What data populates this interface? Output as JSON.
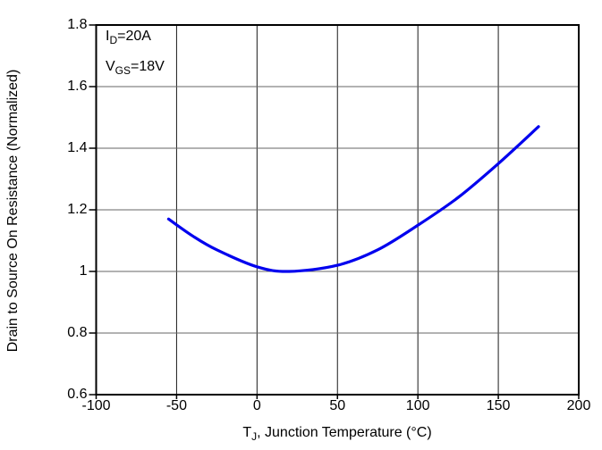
{
  "chart_data": {
    "type": "line",
    "title": "",
    "xlabel": {
      "pre": "T",
      "sub": "J",
      "post": ", Junction Temperature (°C)"
    },
    "ylabel": "Drain to Source On Resistance (Normalized)",
    "xlim": [
      -100,
      200
    ],
    "ylim": [
      0.6,
      1.8
    ],
    "x_ticks": [
      -100,
      -50,
      0,
      50,
      100,
      150,
      200
    ],
    "y_ticks": [
      0.6,
      0.8,
      1,
      1.2,
      1.4,
      1.6,
      1.8
    ],
    "grid": true,
    "legend": "none",
    "series": [
      {
        "name": "rds-on-normalized-vs-tj",
        "color": "#0000ee",
        "x": [
          -55,
          -40,
          -25,
          0,
          20,
          50,
          75,
          100,
          125,
          150,
          175
        ],
        "y": [
          1.17,
          1.115,
          1.07,
          1.015,
          1.0,
          1.02,
          1.07,
          1.15,
          1.24,
          1.35,
          1.47
        ]
      }
    ],
    "annotations": [
      {
        "pre": "I",
        "sub": "D",
        "post": "=20A"
      },
      {
        "pre": "V",
        "sub": "GS",
        "post": "=18V"
      }
    ]
  },
  "styles": {
    "background": "#ffffff",
    "text_color": "#000000",
    "frame_color": "#000000",
    "grid_color_horizontal": "#666666",
    "grid_color_vertical": "#1a1a1a",
    "curve_color": "#0000ee"
  }
}
